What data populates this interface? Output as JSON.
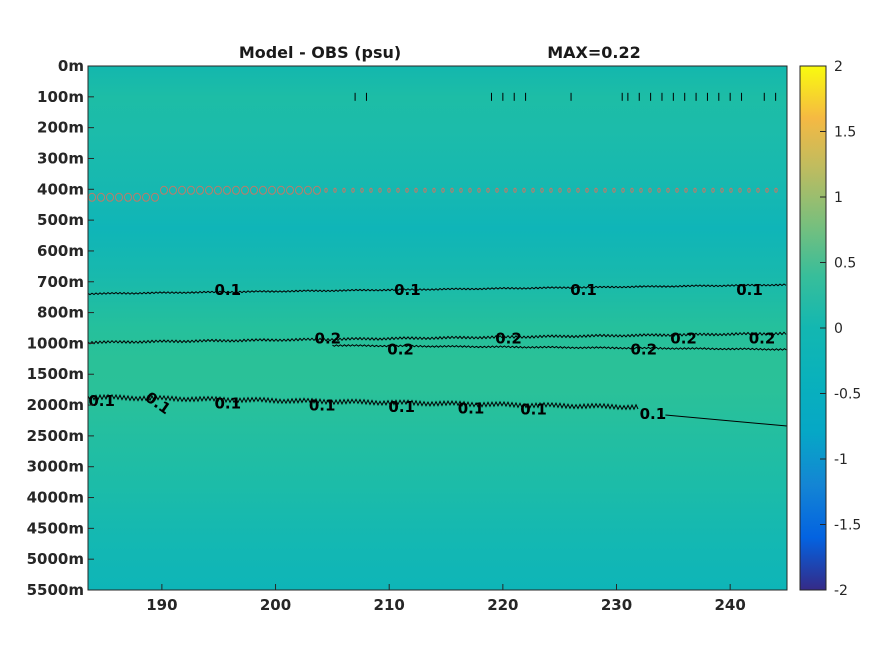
{
  "chart_data": {
    "type": "heatmap",
    "title": "Model - OBS (psu)",
    "max_label": "MAX=0.22",
    "x_ticks": [
      190,
      200,
      210,
      220,
      230,
      240
    ],
    "xlim": [
      183.5,
      245.0
    ],
    "y_tick_labels": [
      "0m",
      "100m",
      "200m",
      "300m",
      "400m",
      "500m",
      "600m",
      "700m",
      "800m",
      "1000m",
      "1500m",
      "2000m",
      "2500m",
      "3000m",
      "4000m",
      "4500m",
      "5000m",
      "5500m"
    ],
    "colorbar": {
      "ticks": [
        "2",
        "1.5",
        "1",
        "0.5",
        "0",
        "-0.5",
        "-1",
        "-1.5",
        "-2"
      ],
      "range": [
        -2,
        2
      ],
      "colormap": "parula"
    },
    "background_value_range": [
      0.0,
      0.3
    ],
    "contours": [
      {
        "level": 0.1,
        "depth": "700m",
        "labels": [
          {
            "x": 195.8,
            "text": "0.1"
          },
          {
            "x": 211.6,
            "text": "0.1"
          },
          {
            "x": 227.1,
            "text": "0.1"
          },
          {
            "x": 241.7,
            "text": "0.1"
          }
        ]
      },
      {
        "level": 0.2,
        "depth": "1000m",
        "labels": [
          {
            "x": 204.6,
            "text": "0.2"
          },
          {
            "x": 220.5,
            "text": "0.2"
          },
          {
            "x": 235.9,
            "text": "0.2"
          },
          {
            "x": 242.8,
            "text": "0.2"
          }
        ]
      },
      {
        "level": 0.2,
        "depth": "1000m",
        "labels": [
          {
            "x": 211.0,
            "text": "0.2"
          },
          {
            "x": 232.4,
            "text": "0.2"
          }
        ]
      },
      {
        "level": 0.1,
        "depth": "2000m",
        "labels": [
          {
            "x": 184.7,
            "text": "0.1"
          },
          {
            "x": 189.4,
            "text": "0.1"
          },
          {
            "x": 195.8,
            "text": "0.1"
          },
          {
            "x": 204.1,
            "text": "0.1"
          },
          {
            "x": 211.1,
            "text": "0.1"
          },
          {
            "x": 217.2,
            "text": "0.1"
          },
          {
            "x": 222.7,
            "text": "0.1"
          },
          {
            "x": 233.2,
            "text": "0.1"
          }
        ]
      }
    ],
    "negative_contour_region": {
      "depth": "400m",
      "x_range": [
        184,
        245
      ]
    }
  }
}
